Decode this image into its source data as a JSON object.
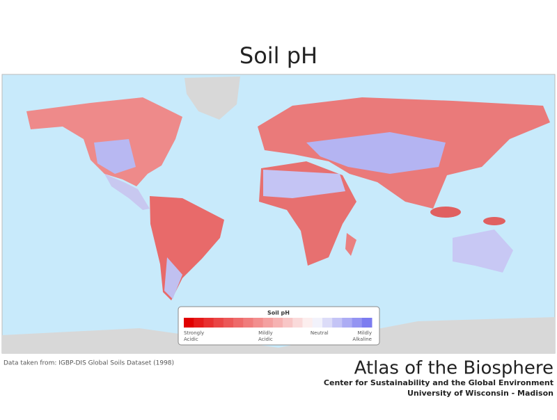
{
  "header": {
    "title": "Soil pH"
  },
  "legend": {
    "title": "Soil pH",
    "labels": [
      [
        "Strongly",
        "Acidic"
      ],
      [
        "Mildly",
        "Acidic"
      ],
      [
        "Neutral"
      ],
      [
        "Mildly",
        "Alkaline"
      ]
    ],
    "swatches": [
      "#e00000",
      "#e51a1a",
      "#e83030",
      "#ea4545",
      "#ec5858",
      "#ee6a6a",
      "#f07c7c",
      "#f28e8e",
      "#f4a0a0",
      "#f6b2b2",
      "#f8c6c6",
      "#fadada",
      "#fceeee",
      "#f2f2fb",
      "#dcdcf8",
      "#c4c4f6",
      "#acacf4",
      "#9494f2",
      "#7c7cf0"
    ]
  },
  "footer": {
    "source": "Data taken from: IGBP-DIS Global Soils Dataset (1998)",
    "brand": "Atlas of the Biosphere",
    "org": "Center for Sustainability and the Global Environment",
    "university": "University of Wisconsin - Madison"
  }
}
